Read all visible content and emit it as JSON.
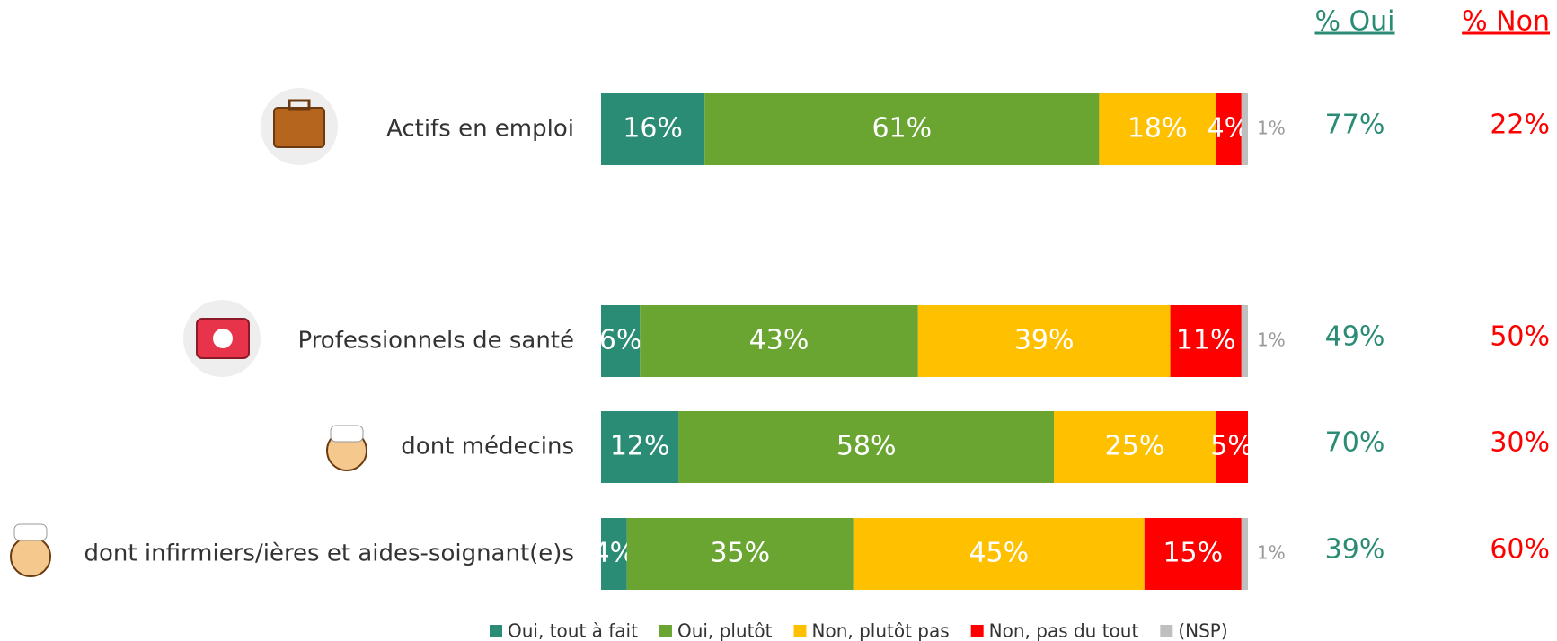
{
  "chart_data": {
    "type": "bar",
    "orientation": "horizontal",
    "stacked": true,
    "categories": [
      "Actifs en emploi",
      "Professionnels de santé",
      "dont médecins",
      "dont infirmiers/ières et aides-soignant(e)s"
    ],
    "xlim": [
      0,
      100
    ],
    "series": [
      {
        "name": "Oui, tout à fait",
        "color": "#2a8c74",
        "values": [
          16,
          6,
          12,
          4
        ],
        "value_labels": [
          "16%",
          "6%",
          "12%",
          "4%"
        ]
      },
      {
        "name": "Oui, plutôt",
        "color": "#6aa532",
        "values": [
          61,
          43,
          58,
          35
        ],
        "value_labels": [
          "61%",
          "43%",
          "58%",
          "35%"
        ]
      },
      {
        "name": "Non, plutôt pas",
        "color": "#ffc000",
        "values": [
          18,
          39,
          25,
          45
        ],
        "value_labels": [
          "18%",
          "39%",
          "25%",
          "45%"
        ]
      },
      {
        "name": "Non, pas du tout",
        "color": "#ff0000",
        "values": [
          4,
          11,
          5,
          15
        ],
        "value_labels": [
          "4%",
          "11%",
          "5%",
          "15%"
        ]
      },
      {
        "name": "(NSP)",
        "color": "#bfbfbf",
        "values": [
          1,
          1,
          null,
          1
        ],
        "value_labels": [
          "1%",
          "1%",
          null,
          "1%"
        ]
      }
    ],
    "columns": [
      {
        "title": "% Oui",
        "color": "#2a8c74",
        "values": [
          77,
          49,
          70,
          39
        ],
        "value_labels": [
          "77%",
          "49%",
          "70%",
          "39%"
        ]
      },
      {
        "title": "% Non",
        "color": "#ff0000",
        "values": [
          22,
          50,
          30,
          60
        ],
        "value_labels": [
          "22%",
          "50%",
          "30%",
          "60%"
        ]
      }
    ]
  }
}
